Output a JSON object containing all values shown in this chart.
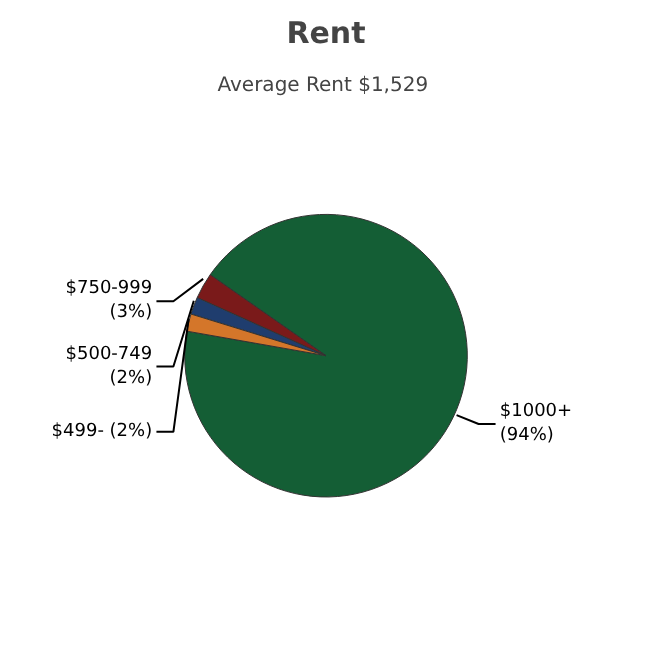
{
  "chart_data": {
    "type": "pie",
    "title": "Rent",
    "subtitle": "Average Rent  $1,529",
    "categories": [
      "$1000+",
      "$750-999",
      "$500-749",
      "$499-"
    ],
    "values": [
      94,
      3,
      2,
      2
    ],
    "value_labels": [
      "(94%)",
      "(3%)",
      "(2%)",
      "(2%)"
    ],
    "colors": [
      "#145e35",
      "#7a1a1a",
      "#1f3d6e",
      "#d4762a"
    ]
  }
}
